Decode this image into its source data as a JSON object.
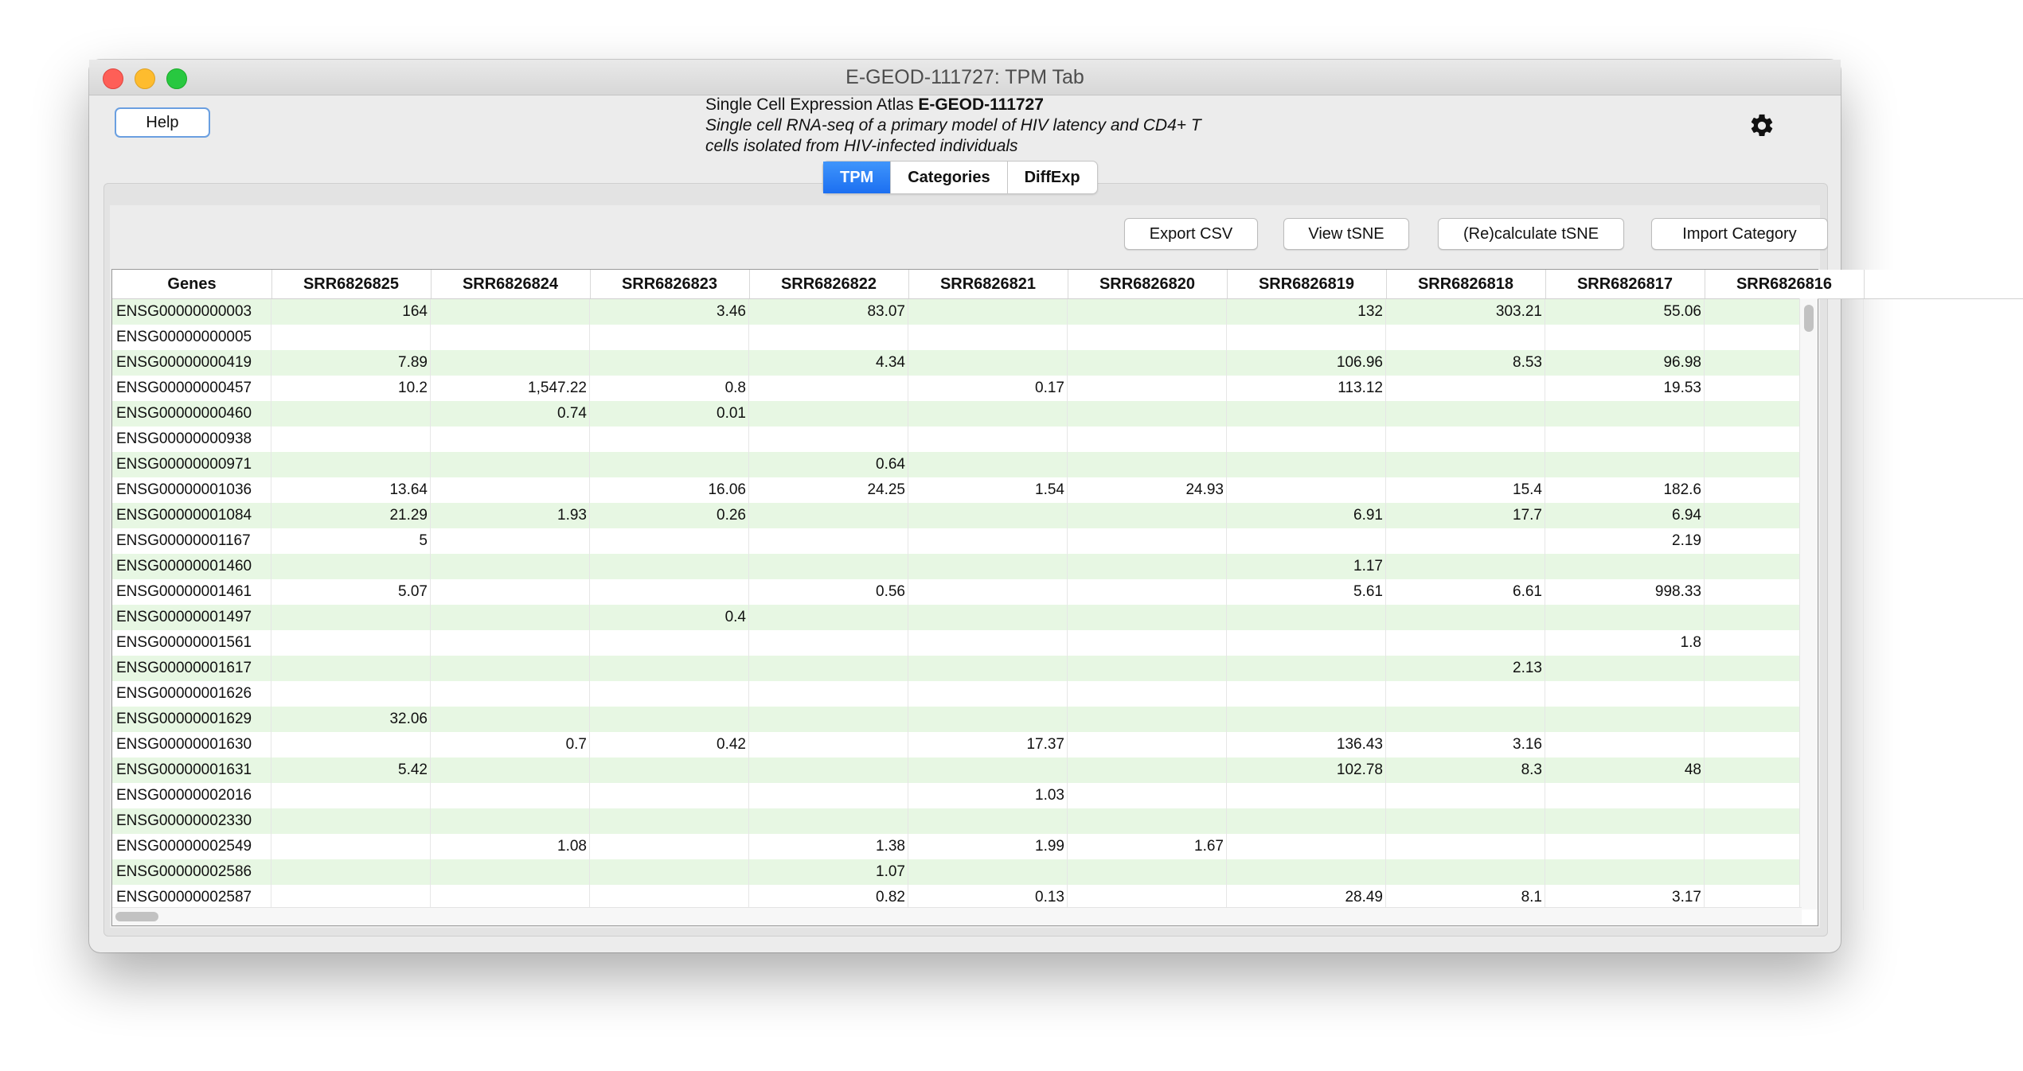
{
  "window": {
    "title": "E-GEOD-111727: TPM Tab"
  },
  "toolbar": {
    "help_label": "Help",
    "settings_icon": "gear-icon"
  },
  "header": {
    "atlas": "Single Cell Expression Atlas",
    "accession": "E-GEOD-111727",
    "description_line1": "Single cell RNA-seq of a primary model of HIV latency and CD4+ T",
    "description_line2": "cells isolated from HIV-infected individuals"
  },
  "tabs": [
    {
      "label": "TPM",
      "active": true
    },
    {
      "label": "Categories",
      "active": false
    },
    {
      "label": "DiffExp",
      "active": false
    }
  ],
  "actions": {
    "export_csv": "Export CSV",
    "view_tsne": "View tSNE",
    "recalculate_tsne": "(Re)calculate tSNE",
    "import_category": "Import Category"
  },
  "colors": {
    "row_alt": "#e7f7e3",
    "tab_active": "#1c6ff1",
    "help_border": "#6a9fe0"
  },
  "table": {
    "columns": [
      "Genes",
      "SRR6826825",
      "SRR6826824",
      "SRR6826823",
      "SRR6826822",
      "SRR6826821",
      "SRR6826820",
      "SRR6826819",
      "SRR6826818",
      "SRR6826817",
      "SRR6826816"
    ],
    "rows": [
      [
        "ENSG00000000003",
        "164",
        "",
        "3.46",
        "83.07",
        "",
        "",
        "132",
        "303.21",
        "55.06",
        ""
      ],
      [
        "ENSG00000000005",
        "",
        "",
        "",
        "",
        "",
        "",
        "",
        "",
        "",
        ""
      ],
      [
        "ENSG00000000419",
        "7.89",
        "",
        "",
        "4.34",
        "",
        "",
        "106.96",
        "8.53",
        "96.98",
        ""
      ],
      [
        "ENSG00000000457",
        "10.2",
        "1,547.22",
        "0.8",
        "",
        "0.17",
        "",
        "113.12",
        "",
        "19.53",
        ""
      ],
      [
        "ENSG00000000460",
        "",
        "0.74",
        "0.01",
        "",
        "",
        "",
        "",
        "",
        "",
        ""
      ],
      [
        "ENSG00000000938",
        "",
        "",
        "",
        "",
        "",
        "",
        "",
        "",
        "",
        ""
      ],
      [
        "ENSG00000000971",
        "",
        "",
        "",
        "0.64",
        "",
        "",
        "",
        "",
        "",
        ""
      ],
      [
        "ENSG00000001036",
        "13.64",
        "",
        "16.06",
        "24.25",
        "1.54",
        "24.93",
        "",
        "15.4",
        "182.6",
        ""
      ],
      [
        "ENSG00000001084",
        "21.29",
        "1.93",
        "0.26",
        "",
        "",
        "",
        "6.91",
        "17.7",
        "6.94",
        ""
      ],
      [
        "ENSG00000001167",
        "5",
        "",
        "",
        "",
        "",
        "",
        "",
        "",
        "2.19",
        ""
      ],
      [
        "ENSG00000001460",
        "",
        "",
        "",
        "",
        "",
        "",
        "1.17",
        "",
        "",
        ""
      ],
      [
        "ENSG00000001461",
        "5.07",
        "",
        "",
        "0.56",
        "",
        "",
        "5.61",
        "6.61",
        "998.33",
        ""
      ],
      [
        "ENSG00000001497",
        "",
        "",
        "0.4",
        "",
        "",
        "",
        "",
        "",
        "",
        ""
      ],
      [
        "ENSG00000001561",
        "",
        "",
        "",
        "",
        "",
        "",
        "",
        "",
        "1.8",
        ""
      ],
      [
        "ENSG00000001617",
        "",
        "",
        "",
        "",
        "",
        "",
        "",
        "2.13",
        "",
        ""
      ],
      [
        "ENSG00000001626",
        "",
        "",
        "",
        "",
        "",
        "",
        "",
        "",
        "",
        ""
      ],
      [
        "ENSG00000001629",
        "32.06",
        "",
        "",
        "",
        "",
        "",
        "",
        "",
        "",
        ""
      ],
      [
        "ENSG00000001630",
        "",
        "0.7",
        "0.42",
        "",
        "17.37",
        "",
        "136.43",
        "3.16",
        "",
        ""
      ],
      [
        "ENSG00000001631",
        "5.42",
        "",
        "",
        "",
        "",
        "",
        "102.78",
        "8.3",
        "48",
        ""
      ],
      [
        "ENSG00000002016",
        "",
        "",
        "",
        "",
        "1.03",
        "",
        "",
        "",
        "",
        ""
      ],
      [
        "ENSG00000002330",
        "",
        "",
        "",
        "",
        "",
        "",
        "",
        "",
        "",
        ""
      ],
      [
        "ENSG00000002549",
        "",
        "1.08",
        "",
        "1.38",
        "1.99",
        "1.67",
        "",
        "",
        "",
        ""
      ],
      [
        "ENSG00000002586",
        "",
        "",
        "",
        "1.07",
        "",
        "",
        "",
        "",
        "",
        ""
      ],
      [
        "ENSG00000002587",
        "",
        "",
        "",
        "0.82",
        "0.13",
        "",
        "28.49",
        "8.1",
        "3.17",
        ""
      ]
    ]
  }
}
